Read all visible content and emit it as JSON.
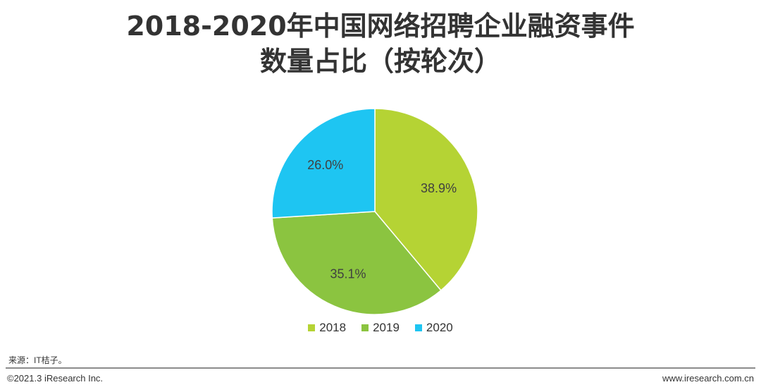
{
  "header": {
    "title_line1": "2018-2020年中国网络招聘企业融资事件",
    "title_line2": "数量占比（按轮次）"
  },
  "chart_data": {
    "type": "pie",
    "title": "2018-2020年中国网络招聘企业融资事件数量占比（按轮次）",
    "categories": [
      "2018",
      "2019",
      "2020"
    ],
    "values": [
      38.9,
      35.1,
      26.0
    ],
    "labels": [
      "38.9%",
      "35.1%",
      "26.0%"
    ],
    "colors": [
      "#b5d334",
      "#8bc440",
      "#1ec5f2"
    ],
    "legend": "bottom"
  },
  "footer": {
    "source": "来源：IT桔子。",
    "copyright": "©2021.3 iResearch Inc.",
    "website": "www.iresearch.com.cn"
  }
}
